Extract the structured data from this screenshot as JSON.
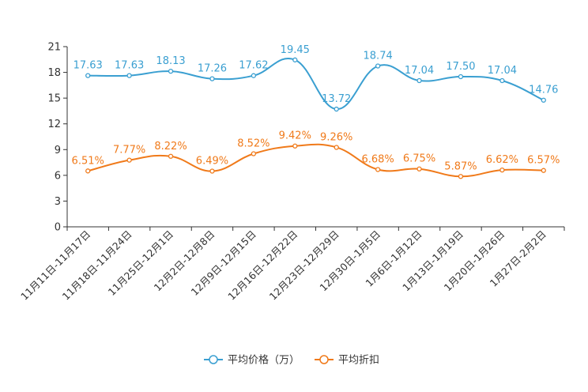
{
  "chart_data": {
    "type": "line",
    "categories": [
      "11月11日-11月17日",
      "11月18日-11月24日",
      "11月25日-12月1日",
      "12月2日-12月8日",
      "12月9日-12月15日",
      "12月16日-12月22日",
      "12月23日-12月29日",
      "12月30日-1月5日",
      "1月6日-1月12日",
      "1月13日-1月19日",
      "1月20日-1月26日",
      "1月27日-2月2日"
    ],
    "series": [
      {
        "name": "平均价格（万）",
        "color": "#3a9fd1",
        "values": [
          17.63,
          17.63,
          18.13,
          17.26,
          17.62,
          19.45,
          13.72,
          18.74,
          17.04,
          17.5,
          17.04,
          14.76
        ],
        "labels": [
          "17.63",
          "17.63",
          "18.13",
          "17.26",
          "17.62",
          "19.45",
          "13.72",
          "18.74",
          "17.04",
          "17.50",
          "17.04",
          "14.76"
        ]
      },
      {
        "name": "平均折扣",
        "color": "#f07a1a",
        "values": [
          6.51,
          7.77,
          8.22,
          6.49,
          8.52,
          9.42,
          9.26,
          6.68,
          6.75,
          5.87,
          6.62,
          6.57
        ],
        "labels": [
          "6.51%",
          "7.77%",
          "8.22%",
          "6.49%",
          "8.52%",
          "9.42%",
          "9.26%",
          "6.68%",
          "6.75%",
          "5.87%",
          "6.62%",
          "6.57%"
        ]
      }
    ],
    "yticks": [
      "0",
      "3",
      "6",
      "9",
      "12",
      "15",
      "18",
      "21"
    ],
    "ylim": [
      0,
      21
    ],
    "title": "",
    "xlabel": "",
    "ylabel": "",
    "legend": "bottom-center"
  }
}
